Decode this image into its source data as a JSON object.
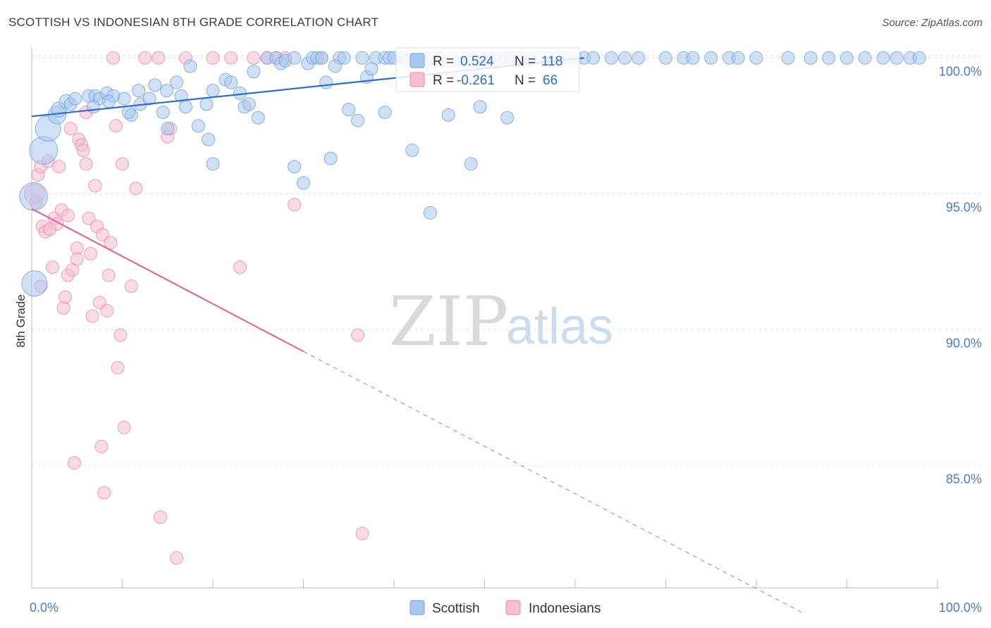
{
  "header": {
    "title": "SCOTTISH VS INDONESIAN 8TH GRADE CORRELATION CHART",
    "source": "Source: ZipAtlas.com"
  },
  "watermark": {
    "zip": "ZIP",
    "atlas": "atlas"
  },
  "colors": {
    "scottish_fill": "#a9c8ef",
    "scottish_stroke": "#6f9fdc",
    "scottish_line": "#2b6fcb",
    "indonesian_fill": "#f6bcd0",
    "indonesian_stroke": "#e98aab",
    "indonesian_line": "#e06b96",
    "grid": "#e3e3e3",
    "tick_text": "#4a7cc9"
  },
  "stats": [
    {
      "series": "Scottish",
      "r_label": "R =",
      "r_value": "0.524",
      "n_label": "N =",
      "n_value": "118"
    },
    {
      "series": "Indonesians",
      "r_label": "R =",
      "r_value": "-0.261",
      "n_label": "N =",
      "n_value": "66"
    }
  ],
  "chart_data": {
    "type": "scatter",
    "title": "SCOTTISH VS INDONESIAN 8TH GRADE CORRELATION CHART",
    "xlabel": "",
    "ylabel": "8th Grade",
    "xlim": [
      0,
      100
    ],
    "ylim": [
      80.5,
      100.5
    ],
    "x_tick_labels": [
      "0.0%",
      "100.0%"
    ],
    "y_ticks": [
      {
        "value": 100,
        "label": "100.0%"
      },
      {
        "value": 95,
        "label": "95.0%"
      },
      {
        "value": 90,
        "label": "90.0%"
      },
      {
        "value": 85,
        "label": "85.0%"
      }
    ],
    "legend": {
      "placement": "bottom-center",
      "items": [
        "Scottish",
        "Indonesians"
      ]
    },
    "series": [
      {
        "name": "Scottish",
        "trend": {
          "x0": 0,
          "y0": 97.85,
          "x1": 61,
          "y1": 100.0,
          "dashed_to": null
        },
        "points": [
          [
            0.2,
            94.9,
            2.2
          ],
          [
            0.3,
            91.7,
            2.0
          ],
          [
            1.3,
            96.6,
            2.2
          ],
          [
            1.8,
            97.4,
            2.0
          ],
          [
            2.8,
            97.9,
            1.4
          ],
          [
            3.0,
            98.1,
            1.2
          ],
          [
            3.8,
            98.4,
            1.1
          ],
          [
            4.3,
            98.3,
            1.0
          ],
          [
            4.8,
            98.5,
            1.0
          ],
          [
            6.3,
            98.6,
            1.0
          ],
          [
            7.0,
            98.6,
            1.0
          ],
          [
            7.5,
            98.5,
            1.0
          ],
          [
            8.3,
            98.7,
            1.0
          ],
          [
            9.0,
            98.6,
            1.0
          ],
          [
            6.8,
            98.2,
            1.0
          ],
          [
            8.5,
            98.4,
            1.0
          ],
          [
            10.2,
            98.5,
            1.0
          ],
          [
            11.0,
            97.9,
            1.0
          ],
          [
            12.0,
            98.3,
            1.0
          ],
          [
            11.8,
            98.8,
            1.0
          ],
          [
            10.7,
            98.0,
            1.0
          ],
          [
            13.0,
            98.5,
            1.0
          ],
          [
            13.6,
            99.0,
            1.0
          ],
          [
            14.9,
            98.8,
            1.0
          ],
          [
            14.5,
            98.0,
            1.0
          ],
          [
            15.0,
            97.4,
            1.0
          ],
          [
            16.0,
            99.1,
            1.0
          ],
          [
            16.5,
            98.6,
            1.0
          ],
          [
            17.5,
            99.7,
            1.0
          ],
          [
            18.4,
            97.5,
            1.0
          ],
          [
            19.3,
            98.3,
            1.0
          ],
          [
            19.5,
            97.0,
            1.0
          ],
          [
            17.0,
            98.2,
            1.0
          ],
          [
            20.0,
            96.1,
            1.0
          ],
          [
            20.0,
            98.8,
            1.0
          ],
          [
            21.4,
            99.2,
            1.0
          ],
          [
            22.0,
            99.1,
            1.0
          ],
          [
            23.0,
            98.7,
            1.0
          ],
          [
            23.5,
            98.2,
            1.0
          ],
          [
            24.0,
            98.3,
            1.0
          ],
          [
            24.5,
            99.5,
            1.0
          ],
          [
            25.0,
            97.8,
            1.0
          ],
          [
            26.0,
            100.0,
            1.0
          ],
          [
            27.0,
            100.0,
            1.0
          ],
          [
            27.5,
            99.8,
            1.0
          ],
          [
            28.0,
            99.9,
            1.0
          ],
          [
            29.0,
            100.0,
            1.0
          ],
          [
            29.0,
            96.0,
            1.0
          ],
          [
            30.0,
            95.4,
            1.0
          ],
          [
            30.5,
            99.8,
            1.0
          ],
          [
            31.0,
            100.0,
            1.0
          ],
          [
            31.5,
            100.0,
            1.0
          ],
          [
            32.0,
            100.0,
            1.0
          ],
          [
            32.5,
            99.1,
            1.0
          ],
          [
            33.0,
            96.3,
            1.0
          ],
          [
            34.0,
            100.0,
            1.0
          ],
          [
            34.5,
            100.0,
            1.0
          ],
          [
            35.0,
            98.1,
            1.0
          ],
          [
            36.0,
            97.7,
            1.0
          ],
          [
            36.5,
            100.0,
            1.0
          ],
          [
            37.0,
            99.3,
            1.0
          ],
          [
            38.0,
            100.0,
            1.0
          ],
          [
            39.0,
            100.0,
            1.0
          ],
          [
            39.5,
            100.0,
            1.0
          ],
          [
            40.0,
            100.0,
            1.0
          ],
          [
            41.0,
            100.0,
            1.0
          ],
          [
            41.5,
            99.9,
            1.0
          ],
          [
            42.0,
            96.6,
            1.0
          ],
          [
            43.0,
            100.0,
            1.0
          ],
          [
            44.0,
            100.0,
            1.0
          ],
          [
            44.0,
            94.3,
            1.0
          ],
          [
            45.0,
            100.0,
            1.0
          ],
          [
            46.0,
            97.9,
            1.0
          ],
          [
            46.5,
            100.0,
            1.0
          ],
          [
            47.5,
            99.8,
            1.0
          ],
          [
            48.0,
            100.0,
            1.0
          ],
          [
            48.5,
            96.1,
            1.0
          ],
          [
            49.0,
            100.0,
            1.0
          ],
          [
            50.0,
            100.0,
            1.0
          ],
          [
            50.5,
            100.0,
            1.0
          ],
          [
            51.0,
            100.0,
            1.0
          ],
          [
            52.0,
            100.0,
            1.0
          ],
          [
            52.5,
            100.0,
            1.0
          ],
          [
            53.0,
            100.0,
            1.0
          ],
          [
            54.0,
            100.0,
            1.0
          ],
          [
            55.0,
            100.0,
            1.0
          ],
          [
            56.0,
            100.0,
            1.0
          ],
          [
            57.0,
            100.0,
            1.0
          ],
          [
            58.0,
            100.0,
            1.0
          ],
          [
            59.0,
            100.0,
            1.0
          ],
          [
            60.0,
            100.0,
            1.0
          ],
          [
            61.0,
            100.0,
            1.0
          ],
          [
            62.0,
            100.0,
            1.0
          ],
          [
            64.0,
            100.0,
            1.0
          ],
          [
            65.5,
            100.0,
            1.0
          ],
          [
            67.0,
            100.0,
            1.0
          ],
          [
            70.0,
            100.0,
            1.0
          ],
          [
            72.0,
            100.0,
            1.0
          ],
          [
            73.0,
            100.0,
            1.0
          ],
          [
            75.0,
            100.0,
            1.0
          ],
          [
            77.0,
            100.0,
            1.0
          ],
          [
            78.0,
            100.0,
            1.0
          ],
          [
            80.0,
            100.0,
            1.0
          ],
          [
            83.5,
            100.0,
            1.0
          ],
          [
            86.0,
            100.0,
            1.0
          ],
          [
            88.0,
            100.0,
            1.0
          ],
          [
            90.0,
            100.0,
            1.0
          ],
          [
            92.0,
            100.0,
            1.0
          ],
          [
            94.0,
            100.0,
            1.0
          ],
          [
            95.5,
            100.0,
            1.0
          ],
          [
            97.0,
            100.0,
            1.0
          ],
          [
            98.0,
            100.0,
            1.0
          ],
          [
            39.0,
            98.0,
            1.0
          ],
          [
            43.5,
            99.8,
            1.0
          ],
          [
            49.5,
            98.2,
            1.0
          ],
          [
            52.5,
            97.8,
            1.0
          ],
          [
            37.5,
            99.6,
            1.0
          ],
          [
            33.5,
            99.7,
            1.0
          ]
        ]
      },
      {
        "name": "Indonesians",
        "trend": {
          "x0": 0,
          "y0": 94.45,
          "x1": 30,
          "y1": 89.2,
          "dashed_to": [
            85,
            79.6
          ]
        },
        "points": [
          [
            0.3,
            95.0,
            1.6
          ],
          [
            0.5,
            94.7,
            1.0
          ],
          [
            0.7,
            95.7,
            1.0
          ],
          [
            1.0,
            96.0,
            1.0
          ],
          [
            1.2,
            93.8,
            1.0
          ],
          [
            1.5,
            93.6,
            1.0
          ],
          [
            1.8,
            96.2,
            1.0
          ],
          [
            2.0,
            93.7,
            1.0
          ],
          [
            2.3,
            92.3,
            1.0
          ],
          [
            2.5,
            94.1,
            1.0
          ],
          [
            2.8,
            93.9,
            1.0
          ],
          [
            3.0,
            96.0,
            1.0
          ],
          [
            3.3,
            94.4,
            1.0
          ],
          [
            3.5,
            90.8,
            1.0
          ],
          [
            3.7,
            91.2,
            1.0
          ],
          [
            4.0,
            92.0,
            1.0
          ],
          [
            4.0,
            94.2,
            1.0
          ],
          [
            4.3,
            97.4,
            1.0
          ],
          [
            4.5,
            92.2,
            1.0
          ],
          [
            4.7,
            85.1,
            1.0
          ],
          [
            5.0,
            93.0,
            1.0
          ],
          [
            5.0,
            92.6,
            1.0
          ],
          [
            5.2,
            97.0,
            1.0
          ],
          [
            5.5,
            96.8,
            1.0
          ],
          [
            5.7,
            96.6,
            1.0
          ],
          [
            6.0,
            98.0,
            1.0
          ],
          [
            6.0,
            96.1,
            1.0
          ],
          [
            6.3,
            94.1,
            1.0
          ],
          [
            6.5,
            92.8,
            1.0
          ],
          [
            6.7,
            90.5,
            1.0
          ],
          [
            7.0,
            95.3,
            1.0
          ],
          [
            7.2,
            93.8,
            1.0
          ],
          [
            7.5,
            91.0,
            1.0
          ],
          [
            7.7,
            85.7,
            1.0
          ],
          [
            7.8,
            93.5,
            1.0
          ],
          [
            8.0,
            84.0,
            1.0
          ],
          [
            8.3,
            90.7,
            1.0
          ],
          [
            8.5,
            92.0,
            1.0
          ],
          [
            8.7,
            93.2,
            1.0
          ],
          [
            9.0,
            100.0,
            1.0
          ],
          [
            9.3,
            97.5,
            1.0
          ],
          [
            9.5,
            88.6,
            1.0
          ],
          [
            9.8,
            89.8,
            1.0
          ],
          [
            10.0,
            96.1,
            1.0
          ],
          [
            10.2,
            86.4,
            1.0
          ],
          [
            11.0,
            91.6,
            1.0
          ],
          [
            11.5,
            95.2,
            1.0
          ],
          [
            12.5,
            100.0,
            1.0
          ],
          [
            14.0,
            100.0,
            1.0
          ],
          [
            14.2,
            83.1,
            1.0
          ],
          [
            15.0,
            97.1,
            1.0
          ],
          [
            15.3,
            97.4,
            1.0
          ],
          [
            16.0,
            81.6,
            1.0
          ],
          [
            17.0,
            100.0,
            1.0
          ],
          [
            20.0,
            100.0,
            1.0
          ],
          [
            22.0,
            100.0,
            1.0
          ],
          [
            23.0,
            92.3,
            1.0
          ],
          [
            24.5,
            100.0,
            1.0
          ],
          [
            26.0,
            100.0,
            1.0
          ],
          [
            27.0,
            100.0,
            1.0
          ],
          [
            28.0,
            100.0,
            1.0
          ],
          [
            29.0,
            94.6,
            1.0
          ],
          [
            32.0,
            100.0,
            1.0
          ],
          [
            36.0,
            89.8,
            1.0
          ],
          [
            36.5,
            82.5,
            1.0
          ],
          [
            1.0,
            91.6,
            1.0
          ]
        ]
      }
    ]
  }
}
